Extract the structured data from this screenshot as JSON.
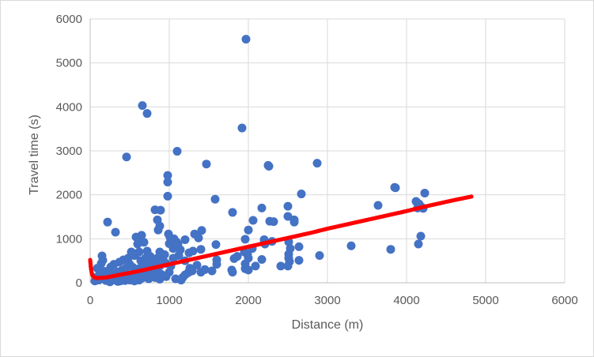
{
  "chart_data": {
    "type": "scatter",
    "xlabel": "Distance (m)",
    "ylabel": "Travel time (s)",
    "xlim": [
      0,
      6000
    ],
    "ylim": [
      0,
      6000
    ],
    "x_ticks": [
      0,
      1000,
      2000,
      3000,
      4000,
      5000,
      6000
    ],
    "y_ticks": [
      0,
      1000,
      2000,
      3000,
      4000,
      5000,
      6000
    ],
    "grid": true,
    "legend": "none",
    "series": [
      {
        "marker_color": "#4472c4",
        "style": "markers",
        "points": [
          [
            1970,
            5540
          ],
          [
            660,
            4030
          ],
          [
            720,
            3850
          ],
          [
            1920,
            3520
          ],
          [
            1100,
            2990
          ],
          [
            460,
            2860
          ],
          [
            1470,
            2700
          ],
          [
            2250,
            2670
          ],
          [
            2260,
            2650
          ],
          [
            2870,
            2720
          ],
          [
            980,
            2440
          ],
          [
            980,
            2290
          ],
          [
            980,
            1970
          ],
          [
            1580,
            1900
          ],
          [
            2670,
            2020
          ],
          [
            3850,
            2170
          ],
          [
            3860,
            2160
          ],
          [
            3640,
            1760
          ],
          [
            4230,
            2040
          ],
          [
            4120,
            1850
          ],
          [
            4130,
            1830
          ],
          [
            4160,
            1790
          ],
          [
            4190,
            1720
          ],
          [
            4140,
            1700
          ],
          [
            4210,
            1690
          ],
          [
            4180,
            1060
          ],
          [
            4150,
            880
          ],
          [
            3300,
            840
          ],
          [
            3800,
            760
          ],
          [
            2900,
            620
          ],
          [
            820,
            1660
          ],
          [
            890,
            1650
          ],
          [
            1800,
            1600
          ],
          [
            2170,
            1700
          ],
          [
            2500,
            1740
          ],
          [
            220,
            1380
          ],
          [
            320,
            1150
          ],
          [
            850,
            1430
          ],
          [
            880,
            1290
          ],
          [
            860,
            1200
          ],
          [
            1410,
            1190
          ],
          [
            1320,
            1110
          ],
          [
            2060,
            1420
          ],
          [
            2270,
            1400
          ],
          [
            2320,
            1390
          ],
          [
            2500,
            1510
          ],
          [
            2580,
            1430
          ],
          [
            2580,
            1380
          ],
          [
            2000,
            1200
          ],
          [
            580,
            1040
          ],
          [
            650,
            1080
          ],
          [
            640,
            980
          ],
          [
            990,
            1110
          ],
          [
            1010,
            1030
          ],
          [
            1060,
            1000
          ],
          [
            1090,
            930
          ],
          [
            1200,
            980
          ],
          [
            1370,
            1020
          ],
          [
            1590,
            870
          ],
          [
            1960,
            990
          ],
          [
            2200,
            980
          ],
          [
            2200,
            910
          ],
          [
            2300,
            940
          ],
          [
            2510,
            930
          ],
          [
            2530,
            780
          ],
          [
            2640,
            820
          ],
          [
            2210,
            880
          ],
          [
            2050,
            780
          ],
          [
            1950,
            700
          ],
          [
            1860,
            600
          ],
          [
            1820,
            550
          ],
          [
            1990,
            640
          ],
          [
            2000,
            560
          ],
          [
            2090,
            380
          ],
          [
            2170,
            530
          ],
          [
            2410,
            380
          ],
          [
            2500,
            380
          ],
          [
            2640,
            510
          ],
          [
            2520,
            480
          ],
          [
            2510,
            560
          ],
          [
            2510,
            650
          ],
          [
            1600,
            520
          ],
          [
            1600,
            420
          ],
          [
            1540,
            270
          ],
          [
            1450,
            300
          ],
          [
            1400,
            240
          ],
          [
            1790,
            290
          ],
          [
            1800,
            240
          ],
          [
            1960,
            320
          ],
          [
            2000,
            290
          ],
          [
            1960,
            430
          ],
          [
            1260,
            330
          ],
          [
            1290,
            270
          ],
          [
            1240,
            230
          ],
          [
            1200,
            180
          ],
          [
            1170,
            120
          ],
          [
            1150,
            60
          ],
          [
            1080,
            90
          ],
          [
            1350,
            400
          ],
          [
            1400,
            760
          ],
          [
            1200,
            500
          ],
          [
            1000,
            890
          ],
          [
            920,
            560
          ],
          [
            840,
            300
          ],
          [
            720,
            450
          ],
          [
            720,
            720
          ],
          [
            560,
            620
          ],
          [
            480,
            560
          ],
          [
            420,
            520
          ],
          [
            370,
            470
          ],
          [
            300,
            420
          ],
          [
            260,
            360
          ],
          [
            240,
            280
          ],
          [
            180,
            260
          ],
          [
            140,
            440
          ],
          [
            150,
            610
          ],
          [
            160,
            510
          ],
          [
            90,
            330
          ],
          [
            120,
            200
          ],
          [
            200,
            150
          ],
          [
            260,
            90
          ],
          [
            330,
            120
          ],
          [
            390,
            170
          ],
          [
            440,
            220
          ],
          [
            480,
            160
          ],
          [
            540,
            100
          ],
          [
            600,
            140
          ],
          [
            620,
            60
          ],
          [
            560,
            40
          ],
          [
            500,
            60
          ],
          [
            440,
            50
          ],
          [
            380,
            40
          ],
          [
            320,
            60
          ],
          [
            260,
            40
          ],
          [
            200,
            50
          ],
          [
            160,
            100
          ],
          [
            110,
            60
          ],
          [
            70,
            120
          ],
          [
            60,
            40
          ],
          [
            250,
            20
          ],
          [
            350,
            30
          ],
          [
            640,
            250
          ],
          [
            700,
            200
          ],
          [
            760,
            160
          ],
          [
            820,
            120
          ],
          [
            880,
            80
          ],
          [
            900,
            190
          ],
          [
            960,
            140
          ],
          [
            1000,
            240
          ],
          [
            1020,
            380
          ],
          [
            960,
            440
          ],
          [
            880,
            380
          ],
          [
            800,
            480
          ],
          [
            760,
            330
          ],
          [
            680,
            380
          ],
          [
            620,
            320
          ],
          [
            580,
            270
          ],
          [
            540,
            350
          ],
          [
            500,
            420
          ],
          [
            450,
            330
          ],
          [
            400,
            280
          ],
          [
            350,
            250
          ],
          [
            300,
            200
          ],
          [
            700,
            560
          ],
          [
            760,
            600
          ],
          [
            620,
            700
          ],
          [
            580,
            660
          ],
          [
            520,
            700
          ],
          [
            880,
            700
          ],
          [
            940,
            640
          ],
          [
            1050,
            560
          ],
          [
            1120,
            620
          ],
          [
            1140,
            750
          ],
          [
            1250,
            680
          ],
          [
            1300,
            720
          ],
          [
            1110,
            880
          ],
          [
            1050,
            780
          ],
          [
            680,
            920
          ],
          [
            600,
            880
          ],
          [
            640,
            500
          ],
          [
            850,
            560
          ],
          [
            780,
            240
          ],
          [
            740,
            90
          ],
          [
            660,
            110
          ],
          [
            600,
            220
          ],
          [
            540,
            200
          ]
        ]
      },
      {
        "marker_color": "#ff0000",
        "style": "dense-markers",
        "points": [
          [
            0,
            520
          ],
          [
            5,
            420
          ],
          [
            10,
            330
          ],
          [
            15,
            270
          ],
          [
            20,
            220
          ],
          [
            25,
            190
          ],
          [
            30,
            165
          ],
          [
            40,
            140
          ],
          [
            50,
            125
          ],
          [
            70,
            112
          ],
          [
            100,
            108
          ],
          [
            200,
            120
          ],
          [
            400,
            190
          ],
          [
            600,
            260
          ],
          [
            800,
            340
          ],
          [
            1000,
            420
          ],
          [
            1200,
            500
          ],
          [
            1400,
            580
          ],
          [
            1600,
            660
          ],
          [
            1800,
            740
          ],
          [
            2000,
            820
          ],
          [
            2200,
            900
          ],
          [
            2400,
            980
          ],
          [
            2600,
            1060
          ],
          [
            2800,
            1140
          ],
          [
            3000,
            1230
          ],
          [
            3200,
            1310
          ],
          [
            3400,
            1390
          ],
          [
            3600,
            1470
          ],
          [
            3800,
            1550
          ],
          [
            4000,
            1630
          ],
          [
            4200,
            1720
          ],
          [
            4400,
            1800
          ],
          [
            4600,
            1880
          ],
          [
            4820,
            1960
          ]
        ]
      }
    ]
  }
}
